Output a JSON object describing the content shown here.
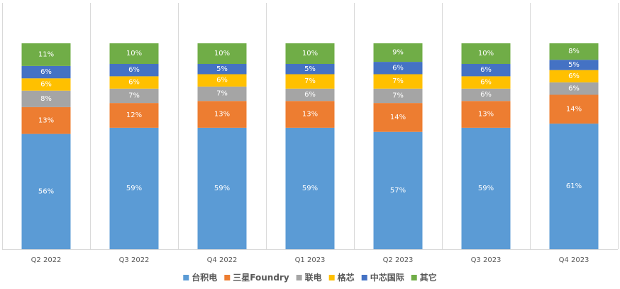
{
  "chart_data": {
    "type": "bar",
    "stacked": true,
    "percent_stacked": true,
    "title": "",
    "xlabel": "",
    "ylabel": "",
    "categories": [
      "Q2 2022",
      "Q3 2022",
      "Q4 2022",
      "Q1 2023",
      "Q2 2023",
      "Q3 2023",
      "Q4 2023"
    ],
    "series": [
      {
        "name": "台积电",
        "color": "#5B9BD5",
        "label_color": "#ffffff",
        "values": [
          56,
          59,
          59,
          59,
          57,
          59,
          61
        ],
        "labels": [
          "56%",
          "59%",
          "59%",
          "59%",
          "57%",
          "59%",
          "61%"
        ]
      },
      {
        "name": "三星Foundry",
        "color": "#ED7D31",
        "label_color": "#ffffff",
        "values": [
          13,
          12,
          13,
          13,
          14,
          13,
          14
        ],
        "labels": [
          "13%",
          "12%",
          "13%",
          "13%",
          "14%",
          "13%",
          "14%"
        ]
      },
      {
        "name": "联电",
        "color": "#A5A5A5",
        "label_color": "#ffffff",
        "values": [
          8,
          7,
          7,
          6,
          7,
          6,
          6
        ],
        "labels": [
          "8%",
          "7%",
          "7%",
          "6%",
          "7%",
          "6%",
          "6%"
        ]
      },
      {
        "name": "格芯",
        "color": "#FFC000",
        "label_color": "#ffffff",
        "values": [
          6,
          6,
          6,
          7,
          7,
          6,
          6
        ],
        "labels": [
          "6%",
          "6%",
          "6%",
          "7%",
          "7%",
          "6%",
          "6%"
        ]
      },
      {
        "name": "中芯国际",
        "color": "#4472C4",
        "label_color": "#ffffff",
        "values": [
          6,
          6,
          5,
          5,
          6,
          6,
          5
        ],
        "labels": [
          "6%",
          "6%",
          "5%",
          "5%",
          "6%",
          "6%",
          "5%"
        ]
      },
      {
        "name": "其它",
        "color": "#70AD47",
        "label_color": "#ffffff",
        "values": [
          11,
          10,
          10,
          10,
          9,
          10,
          8
        ],
        "labels": [
          "11%",
          "10%",
          "10%",
          "10%",
          "9%",
          "10%",
          "8%"
        ]
      }
    ],
    "ylim": [
      0,
      100
    ],
    "grid": "vertical separators between categories",
    "legend_position": "bottom"
  }
}
